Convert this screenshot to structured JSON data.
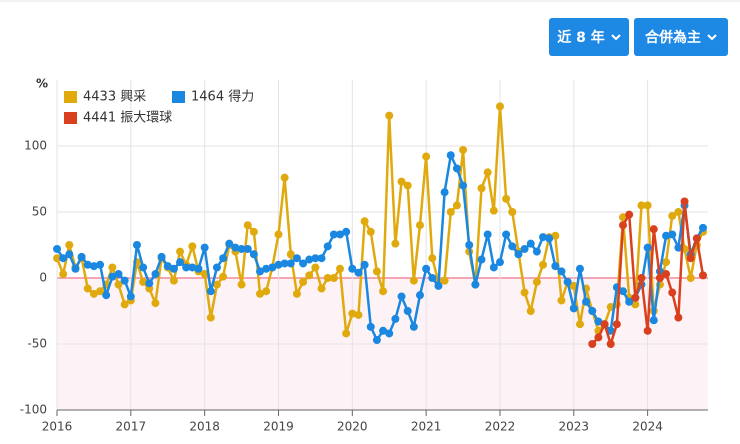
{
  "controls": [
    "近 8 年",
    "合併為主"
  ],
  "chart_data": {
    "type": "line",
    "y_label": "%",
    "categories": [
      "2016",
      null,
      null,
      null,
      null,
      null,
      null,
      null,
      null,
      null,
      null,
      null,
      "2017",
      null,
      null,
      null,
      null,
      null,
      null,
      null,
      null,
      null,
      null,
      null,
      "2018",
      null,
      null,
      null,
      null,
      null,
      null,
      null,
      null,
      null,
      null,
      null,
      "2019",
      null,
      null,
      null,
      null,
      null,
      null,
      null,
      null,
      null,
      null,
      null,
      "2020",
      null,
      null,
      null,
      null,
      null,
      null,
      null,
      null,
      null,
      null,
      null,
      "2021",
      null,
      null,
      null,
      null,
      null,
      null,
      null,
      null,
      null,
      null,
      null,
      "2022",
      null,
      null,
      null,
      null,
      null,
      null,
      null,
      null,
      null,
      null,
      null,
      "2023",
      null,
      null,
      null,
      null,
      null,
      null,
      null,
      null,
      null,
      null,
      null,
      "2024",
      null,
      null,
      null,
      null,
      null,
      null,
      null,
      null,
      null
    ],
    "series": [
      {
        "name": "4433 興采",
        "color": "#e0aa0f",
        "values": [
          15,
          3,
          25,
          8,
          15,
          -8,
          -12,
          -10,
          -5,
          8,
          -5,
          -20,
          -17,
          12,
          -3,
          -8,
          -19,
          15,
          8,
          -2,
          20,
          10,
          24,
          5,
          3,
          -30,
          -5,
          1,
          25,
          20,
          -5,
          40,
          35,
          -12,
          -10,
          8,
          33,
          76,
          18,
          -12,
          -3,
          2,
          8,
          -8,
          0,
          0,
          7,
          -42,
          -27,
          -28,
          43,
          35,
          5,
          -10,
          123,
          26,
          73,
          70,
          -2,
          40,
          92,
          15,
          -3,
          -2,
          50,
          55,
          97,
          20,
          -5,
          68,
          80,
          51,
          130,
          60,
          50,
          20,
          -11,
          -25,
          -3,
          10,
          31,
          32,
          -17,
          -3,
          -6,
          -35,
          -8,
          -25,
          -40,
          -35,
          -22,
          -20,
          46,
          -15,
          -20,
          55,
          55,
          -25,
          -5,
          12,
          47,
          50,
          22,
          0,
          25,
          35
        ]
      },
      {
        "name": "1464 得力",
        "color": "#1a87e0",
        "values": [
          22,
          15,
          18,
          7,
          16,
          10,
          9,
          10,
          -13,
          1,
          3,
          -2,
          -14,
          25,
          8,
          -4,
          3,
          16,
          9,
          7,
          12,
          8,
          8,
          7,
          23,
          -10,
          8,
          15,
          26,
          23,
          22,
          22,
          18,
          5,
          7,
          8,
          10,
          11,
          11,
          15,
          11,
          14,
          15,
          15,
          24,
          33,
          33,
          35,
          7,
          4,
          10,
          -37,
          -47,
          -40,
          -42,
          -31,
          -14,
          -25,
          -37,
          -13,
          7,
          0,
          -6,
          65,
          93,
          83,
          70,
          25,
          -5,
          14,
          33,
          8,
          12,
          33,
          24,
          18,
          22,
          26,
          20,
          31,
          30,
          9,
          5,
          -3,
          -23,
          7,
          -18,
          -25,
          -33,
          -35,
          -40,
          -7,
          -10,
          -18,
          -15,
          -5,
          23,
          -32,
          5,
          32,
          33,
          23,
          55,
          18,
          30,
          38
        ]
      },
      {
        "name": "4441 振大環球",
        "color": "#d9411e",
        "values": [
          null,
          null,
          null,
          null,
          null,
          null,
          null,
          null,
          null,
          null,
          null,
          null,
          null,
          null,
          null,
          null,
          null,
          null,
          null,
          null,
          null,
          null,
          null,
          null,
          null,
          null,
          null,
          null,
          null,
          null,
          null,
          null,
          null,
          null,
          null,
          null,
          null,
          null,
          null,
          null,
          null,
          null,
          null,
          null,
          null,
          null,
          null,
          null,
          null,
          null,
          null,
          null,
          null,
          null,
          null,
          null,
          null,
          null,
          null,
          null,
          null,
          null,
          null,
          null,
          null,
          null,
          null,
          null,
          null,
          null,
          null,
          null,
          null,
          null,
          null,
          null,
          null,
          null,
          null,
          null,
          null,
          null,
          null,
          null,
          null,
          null,
          null,
          -50,
          -45,
          -35,
          -50,
          -35,
          40,
          48,
          -15,
          0,
          -40,
          37,
          0,
          3,
          -11,
          -30,
          58,
          15,
          30,
          2
        ]
      }
    ],
    "ylim": [
      -100,
      150
    ],
    "yticks": [
      -100,
      -50,
      0,
      50,
      100
    ],
    "grid": true
  }
}
